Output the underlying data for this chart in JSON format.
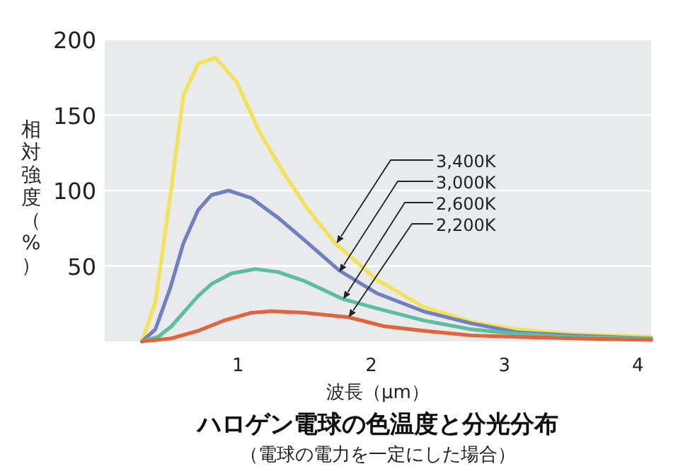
{
  "chart_data": {
    "type": "line",
    "title": "ハロゲン電球の色温度と分光分布",
    "subtitle": "（電球の電力を一定にした場合）",
    "xlabel": "波長（μm）",
    "ylabel": "相対強度（%）",
    "xlim": [
      0,
      4.1
    ],
    "ylim": [
      0,
      200
    ],
    "xticks": [
      1,
      2,
      3,
      4
    ],
    "yticks": [
      50,
      100,
      150,
      200
    ],
    "grid": "y",
    "marker": "none",
    "line_style": "solid",
    "series": [
      {
        "color": "#f3e25a",
        "x": [
          0.28,
          0.38,
          0.49,
          0.59,
          0.7,
          0.83,
          0.99,
          1.16,
          1.34,
          1.52,
          1.73,
          2.04,
          2.39,
          2.75,
          3.1,
          3.5,
          4.1
        ],
        "values": [
          0,
          26,
          95,
          163,
          184,
          188,
          172,
          139,
          112,
          88,
          65,
          41,
          23,
          13,
          8,
          5,
          3
        ]
      },
      {
        "color": "#7080c0",
        "x": [
          0.28,
          0.38,
          0.49,
          0.59,
          0.7,
          0.8,
          0.93,
          1.1,
          1.3,
          1.5,
          1.76,
          2.04,
          2.39,
          2.75,
          3.1,
          3.5,
          4.1
        ],
        "values": [
          0,
          8,
          35,
          65,
          87,
          97,
          100,
          95,
          82,
          67,
          47,
          32,
          20,
          12,
          6,
          4,
          2
        ]
      },
      {
        "color": "#5bbf9f",
        "x": [
          0.28,
          0.4,
          0.5,
          0.6,
          0.7,
          0.8,
          0.95,
          1.13,
          1.3,
          1.5,
          1.79,
          2.04,
          2.39,
          2.75,
          3.1,
          3.5,
          4.1
        ],
        "values": [
          0,
          3,
          10,
          20,
          30,
          38,
          45,
          48,
          46,
          40,
          28,
          22,
          14,
          8,
          5,
          3,
          2
        ]
      },
      {
        "color": "#e0643c",
        "x": [
          0.28,
          0.5,
          0.7,
          0.9,
          1.1,
          1.25,
          1.5,
          1.83,
          2.1,
          2.4,
          2.75,
          3.1,
          3.5,
          4.1
        ],
        "values": [
          0,
          2,
          7,
          14,
          19,
          20,
          19,
          16,
          10,
          7,
          4,
          3,
          2,
          1
        ]
      }
    ],
    "annotations": [
      {
        "text": "3,400K",
        "x": 1.74,
        "y": 65
      },
      {
        "text": "3,000K",
        "x": 1.76,
        "y": 46
      },
      {
        "text": "2,600K",
        "x": 1.79,
        "y": 28
      },
      {
        "text": "2,200K",
        "x": 1.83,
        "y": 16
      }
    ]
  }
}
